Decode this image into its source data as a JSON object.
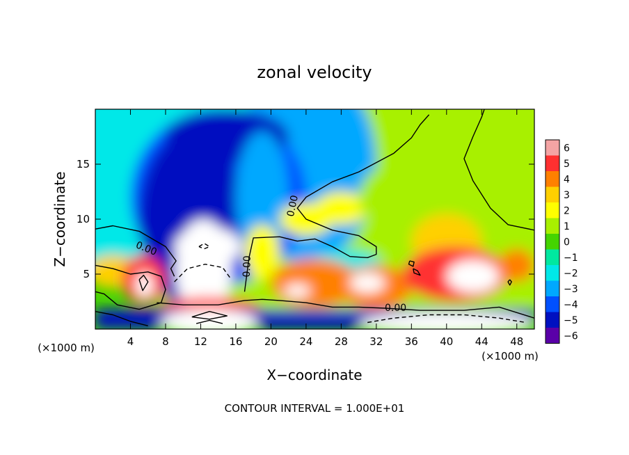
{
  "chart_data": {
    "type": "heatmap",
    "title": "zonal velocity",
    "xlabel": "X−coordinate",
    "ylabel": "Z−coordinate",
    "x_unit_left": "(×1000 m)",
    "x_unit_right": "(×1000 m)",
    "xlim": [
      0,
      50
    ],
    "ylim": [
      0,
      20
    ],
    "xticks": [
      4,
      8,
      12,
      16,
      20,
      24,
      28,
      32,
      36,
      40,
      44,
      48
    ],
    "yticks": [
      5,
      10,
      15
    ],
    "xtick_labels": [
      "4",
      "8",
      "12",
      "16",
      "20",
      "24",
      "28",
      "32",
      "36",
      "40",
      "44",
      "48"
    ],
    "ytick_labels": [
      "5",
      "10",
      "15"
    ],
    "colorbar": {
      "range": [
        -6,
        6
      ],
      "tick_labels": [
        "6",
        "5",
        "4",
        "3",
        "2",
        "1",
        "0",
        "−1",
        "−2",
        "−3",
        "−4",
        "−5",
        "−6"
      ],
      "colors": [
        "#f4a4a4",
        "#ff3030",
        "#ff8000",
        "#ffd000",
        "#ffff00",
        "#a8f000",
        "#44d400",
        "#00e8a0",
        "#00e8e8",
        "#00a8ff",
        "#0050ff",
        "#0010c0",
        "#5a00a8"
      ]
    },
    "contour_labels": [
      {
        "text": "0.00",
        "x": 5.8,
        "y": 7.3,
        "angle": 22
      },
      {
        "text": "0.00",
        "x": 17.3,
        "y": 5.7,
        "angle": -88
      },
      {
        "text": "0.00",
        "x": 22.5,
        "y": 11.2,
        "angle": -78
      },
      {
        "text": "0.00",
        "x": 34.2,
        "y": 1.9,
        "angle": 0
      }
    ],
    "regions": [
      {
        "shape": "ellipse",
        "cx": 30,
        "cy": 14,
        "rx": 40,
        "ry": 14,
        "value": 0.8
      },
      {
        "shape": "ellipse",
        "cx": 8,
        "cy": 16,
        "rx": 12,
        "ry": 10,
        "value": -2.2
      },
      {
        "shape": "ellipse",
        "cx": 24,
        "cy": 15,
        "rx": 8,
        "ry": 9,
        "value": -2.5
      },
      {
        "shape": "ellipse",
        "cx": 2,
        "cy": 12,
        "rx": 6,
        "ry": 8,
        "value": -1.8
      },
      {
        "shape": "ellipse",
        "cx": 14,
        "cy": 12,
        "rx": 10,
        "ry": 8,
        "value": -3.5
      },
      {
        "shape": "ellipse",
        "cx": 11,
        "cy": 10,
        "rx": 6,
        "ry": 8,
        "value": -4.5
      },
      {
        "shape": "ellipse",
        "cx": 15,
        "cy": 17.5,
        "rx": 7,
        "ry": 2.5,
        "value": -4.8
      },
      {
        "shape": "ellipse",
        "cx": 11.5,
        "cy": 11.5,
        "rx": 3,
        "ry": 3,
        "value": -5.4
      },
      {
        "shape": "ellipse",
        "cx": 19,
        "cy": 12,
        "rx": 3,
        "ry": 6,
        "value": -3.0
      },
      {
        "shape": "ellipse",
        "cx": 28.5,
        "cy": 6,
        "rx": 4,
        "ry": 1.2,
        "value": -1.5
      },
      {
        "shape": "ellipse",
        "cx": 24,
        "cy": 10,
        "rx": 3,
        "ry": 1.5,
        "value": 2.0
      },
      {
        "shape": "ellipse",
        "cx": 28,
        "cy": 11,
        "rx": 3,
        "ry": 1.5,
        "value": 1.8
      },
      {
        "shape": "ellipse",
        "cx": 38,
        "cy": 12,
        "rx": 8,
        "ry": 4,
        "value": 1.5
      },
      {
        "shape": "ellipse",
        "cx": 40,
        "cy": 8,
        "rx": 4,
        "ry": 2.5,
        "value": 3.0
      },
      {
        "shape": "ellipse",
        "cx": 2,
        "cy": 5.2,
        "rx": 3,
        "ry": 1.5,
        "value": 3.0
      },
      {
        "shape": "ellipse",
        "cx": 5.5,
        "cy": 4.5,
        "rx": 2.5,
        "ry": 2.2,
        "value": 5.0
      },
      {
        "shape": "ellipse",
        "cx": 5.6,
        "cy": 4.0,
        "rx": 1.0,
        "ry": 1.2,
        "value": 6.5
      },
      {
        "shape": "ellipse",
        "cx": 19,
        "cy": 7,
        "rx": 2,
        "ry": 2.5,
        "value": 2.0
      },
      {
        "shape": "ellipse",
        "cx": 25,
        "cy": 4.2,
        "rx": 5,
        "ry": 2.2,
        "value": 4.5
      },
      {
        "shape": "ellipse",
        "cx": 23,
        "cy": 3.5,
        "rx": 1.5,
        "ry": 0.6,
        "value": 6.5
      },
      {
        "shape": "ellipse",
        "cx": 32,
        "cy": 3.8,
        "rx": 4,
        "ry": 2,
        "value": 4.5
      },
      {
        "shape": "ellipse",
        "cx": 31,
        "cy": 4.2,
        "rx": 2,
        "ry": 0.9,
        "value": 6.5
      },
      {
        "shape": "ellipse",
        "cx": 41,
        "cy": 5,
        "rx": 6,
        "ry": 2.5,
        "value": 4.6
      },
      {
        "shape": "ellipse",
        "cx": 43,
        "cy": 4.8,
        "rx": 3,
        "ry": 1.5,
        "value": 6.5
      },
      {
        "shape": "ellipse",
        "cx": 48,
        "cy": 5.8,
        "rx": 2,
        "ry": 1.5,
        "value": 4.0
      },
      {
        "shape": "ellipse",
        "cx": 12.3,
        "cy": 5.5,
        "rx": 3.2,
        "ry": 4.5,
        "value": 6.5
      },
      {
        "shape": "ellipse",
        "cx": 12.8,
        "cy": 7.5,
        "rx": 3.8,
        "ry": 1.8,
        "value": 6.5
      },
      {
        "shape": "ellipse",
        "cx": 13,
        "cy": 1.7,
        "rx": 6,
        "ry": 1.2,
        "value": 5.5
      },
      {
        "shape": "rect",
        "x0": 0,
        "x1": 50,
        "y0": 0,
        "y1": 1.8,
        "value": -5.0
      },
      {
        "shape": "ellipse",
        "cx": 13,
        "cy": 0.6,
        "rx": 5.5,
        "ry": 1.2,
        "value": 6.5
      },
      {
        "shape": "ellipse",
        "cx": 40,
        "cy": 0.5,
        "rx": 10,
        "ry": 1.0,
        "value": 6.5
      }
    ],
    "contours": [
      {
        "style": "solid",
        "points": [
          [
            0,
            9.1
          ],
          [
            2,
            9.4
          ],
          [
            5,
            8.9
          ],
          [
            8,
            7.5
          ],
          [
            9.2,
            6.2
          ],
          [
            8.6,
            5.5
          ],
          [
            9,
            4.8
          ]
        ]
      },
      {
        "style": "solid",
        "points": [
          [
            0,
            5.8
          ],
          [
            2,
            5.5
          ],
          [
            4,
            5.0
          ],
          [
            6,
            5.2
          ],
          [
            7.5,
            4.8
          ],
          [
            8,
            3.6
          ],
          [
            7.5,
            2.4
          ],
          [
            5,
            1.8
          ],
          [
            2.5,
            2.2
          ],
          [
            1,
            3.2
          ],
          [
            0,
            3.4
          ]
        ]
      },
      {
        "style": "solid",
        "points": [
          [
            17,
            3.4
          ],
          [
            17.5,
            6.5
          ],
          [
            18,
            8.3
          ],
          [
            21,
            8.4
          ],
          [
            23,
            8.0
          ],
          [
            25,
            8.2
          ],
          [
            27,
            7.5
          ],
          [
            29,
            6.6
          ],
          [
            31,
            6.5
          ],
          [
            32,
            6.8
          ],
          [
            32,
            7.5
          ],
          [
            30,
            8.5
          ],
          [
            27,
            9.0
          ],
          [
            24,
            10.0
          ],
          [
            23,
            11.0
          ],
          [
            24,
            12.0
          ],
          [
            27,
            13.4
          ],
          [
            30,
            14.3
          ],
          [
            34,
            16.0
          ],
          [
            36,
            17.4
          ],
          [
            37,
            18.6
          ],
          [
            38,
            19.5
          ]
        ]
      },
      {
        "style": "solid",
        "points": [
          [
            50,
            9.0
          ],
          [
            47,
            9.5
          ],
          [
            45,
            11.0
          ],
          [
            43,
            13.5
          ],
          [
            42,
            15.5
          ],
          [
            43,
            17.5
          ],
          [
            44,
            19.3
          ],
          [
            44.3,
            20
          ]
        ]
      },
      {
        "style": "solid",
        "points": [
          [
            7,
            2.4
          ],
          [
            10,
            2.2
          ],
          [
            14,
            2.2
          ],
          [
            17,
            2.6
          ],
          [
            19,
            2.7
          ],
          [
            21,
            2.6
          ],
          [
            24,
            2.4
          ],
          [
            27,
            2.0
          ],
          [
            30,
            2.0
          ],
          [
            33,
            1.9
          ],
          [
            37,
            1.7
          ],
          [
            42,
            1.7
          ],
          [
            46,
            2.0
          ],
          [
            48,
            1.5
          ],
          [
            50,
            1.0
          ]
        ]
      },
      {
        "style": "solid",
        "points": [
          [
            0,
            1.6
          ],
          [
            2,
            1.3
          ],
          [
            4,
            0.7
          ],
          [
            6,
            0.3
          ]
        ]
      },
      {
        "style": "solid",
        "points": [
          [
            11,
            1.1
          ],
          [
            13,
            1.6
          ],
          [
            15,
            1.2
          ],
          [
            13,
            0.9
          ],
          [
            11,
            1.1
          ]
        ]
      },
      {
        "style": "solid",
        "points": [
          [
            11.5,
            0.5
          ],
          [
            13,
            0.8
          ],
          [
            14.5,
            0.5
          ]
        ]
      },
      {
        "style": "solid",
        "points": [
          [
            5,
            4.5
          ],
          [
            5.4,
            3.5
          ],
          [
            6,
            4.3
          ],
          [
            5.5,
            4.9
          ],
          [
            5,
            4.5
          ]
        ]
      },
      {
        "style": "solid",
        "points": [
          [
            36.2,
            5.5
          ],
          [
            36.7,
            5.3
          ],
          [
            37,
            4.9
          ],
          [
            36.3,
            5.1
          ],
          [
            36.2,
            5.5
          ]
        ]
      },
      {
        "style": "solid",
        "points": [
          [
            35.8,
            6.2
          ],
          [
            36.3,
            6.1
          ],
          [
            36.2,
            5.7
          ],
          [
            35.7,
            5.9
          ],
          [
            35.8,
            6.2
          ]
        ]
      },
      {
        "style": "solid",
        "points": [
          [
            47.2,
            4.5
          ],
          [
            47.4,
            4.3
          ],
          [
            47.2,
            4.0
          ],
          [
            47.0,
            4.3
          ],
          [
            47.2,
            4.5
          ]
        ]
      },
      {
        "style": "dashed",
        "points": [
          [
            9,
            4.3
          ],
          [
            10.5,
            5.5
          ],
          [
            12.5,
            5.9
          ],
          [
            14.5,
            5.6
          ],
          [
            15.5,
            4.5
          ]
        ]
      },
      {
        "style": "dashed",
        "points": [
          [
            11.8,
            7.5
          ],
          [
            12.4,
            7.8
          ],
          [
            13,
            7.5
          ],
          [
            12.4,
            7.3
          ],
          [
            11.8,
            7.5
          ]
        ]
      },
      {
        "style": "dashed",
        "points": [
          [
            31,
            0.6
          ],
          [
            34,
            1.0
          ],
          [
            38,
            1.3
          ],
          [
            42,
            1.3
          ],
          [
            46,
            1.0
          ],
          [
            49,
            0.6
          ]
        ]
      }
    ]
  },
  "footer": {
    "contour_interval": "CONTOUR INTERVAL = 1.000E+01"
  }
}
